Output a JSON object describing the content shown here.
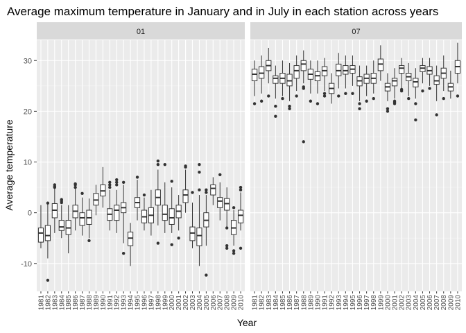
{
  "chart_data": {
    "type": "boxplot",
    "title": "Average maximum temperature in January and in July in each station across years",
    "xlabel": "Year",
    "ylabel": "Average temperature",
    "ylim": [
      -15.5,
      34
    ],
    "y_ticks": [
      -10,
      0,
      10,
      20,
      30
    ],
    "grid": true,
    "legend": "none",
    "colors": {
      "panel_bg": "#ebebeb",
      "strip_bg": "#d9d9d9",
      "grid_major": "#ffffff",
      "box_fill": "#ffffff",
      "box_line": "#333333",
      "outlier": "#333333",
      "axis_text": "#4d4d4d"
    },
    "categories": [
      "1981",
      "1982",
      "1983",
      "1984",
      "1985",
      "1986",
      "1987",
      "1988",
      "1989",
      "1990",
      "1991",
      "1992",
      "1993",
      "1994",
      "1995",
      "1996",
      "1997",
      "1998",
      "1999",
      "2000",
      "2001",
      "2002",
      "2003",
      "2004",
      "2005",
      "2006",
      "2007",
      "2008",
      "2009",
      "2010"
    ],
    "panels": [
      {
        "strip": "01",
        "boxes": [
          {
            "year": "1981",
            "min": -7.0,
            "q1": -5.8,
            "median": -4.0,
            "q3": -3.0,
            "max": 1.5,
            "outliers": []
          },
          {
            "year": "1982",
            "min": -9.0,
            "q1": -5.5,
            "median": -4.5,
            "q3": -2.5,
            "max": 1.8,
            "outliers": [
              -13.3,
              1.9
            ]
          },
          {
            "year": "1983",
            "min": -4.0,
            "q1": -1.0,
            "median": 0.5,
            "q3": 1.8,
            "max": 4.8,
            "outliers": [
              5.0,
              5.2,
              5.5
            ]
          },
          {
            "year": "1984",
            "min": -5.0,
            "q1": -3.5,
            "median": -2.8,
            "q3": -1.5,
            "max": 1.5,
            "outliers": [
              2.0,
              2.3,
              2.6
            ]
          },
          {
            "year": "1985",
            "min": -8.0,
            "q1": -4.3,
            "median": -3.0,
            "q3": -1.5,
            "max": 1.5,
            "outliers": []
          },
          {
            "year": "1986",
            "min": -3.5,
            "q1": -1.0,
            "median": 0.3,
            "q3": 1.5,
            "max": 4.8,
            "outliers": [
              5.0,
              5.5,
              5.7
            ]
          },
          {
            "year": "1987",
            "min": -4.5,
            "q1": -2.5,
            "median": -1.0,
            "q3": 0.0,
            "max": 3.0,
            "outliers": [
              3.8
            ]
          },
          {
            "year": "1988",
            "min": -5.0,
            "q1": -2.3,
            "median": -1.0,
            "q3": 0.5,
            "max": 2.8,
            "outliers": [
              -5.5
            ]
          },
          {
            "year": "1989",
            "min": -0.5,
            "q1": 1.5,
            "median": 2.5,
            "q3": 3.8,
            "max": 5.5,
            "outliers": []
          },
          {
            "year": "1990",
            "min": 1.0,
            "q1": 3.3,
            "median": 4.3,
            "q3": 5.5,
            "max": 9.0,
            "outliers": []
          },
          {
            "year": "1991",
            "min": -3.5,
            "q1": -1.5,
            "median": -0.3,
            "q3": 0.8,
            "max": 4.5,
            "outliers": [
              5.0,
              5.5,
              6.0
            ]
          },
          {
            "year": "1992",
            "min": -4.0,
            "q1": -1.5,
            "median": 0.5,
            "q3": 1.5,
            "max": 4.5,
            "outliers": [
              5.5,
              6.0,
              6.5
            ]
          },
          {
            "year": "1993",
            "min": -6.0,
            "q1": 0.0,
            "median": 1.0,
            "q3": 2.0,
            "max": 5.5,
            "outliers": [
              -8.0,
              6.0
            ]
          },
          {
            "year": "1994",
            "min": -10.5,
            "q1": -6.5,
            "median": -5.0,
            "q3": -3.8,
            "max": -2.0,
            "outliers": []
          },
          {
            "year": "1995",
            "min": -1.5,
            "q1": 1.0,
            "median": 2.0,
            "q3": 3.0,
            "max": 6.5,
            "outliers": [
              7.0
            ]
          },
          {
            "year": "1996",
            "min": -3.5,
            "q1": -2.0,
            "median": -0.8,
            "q3": 0.5,
            "max": 3.0,
            "outliers": [
              3.5
            ]
          },
          {
            "year": "1997",
            "min": -4.5,
            "q1": -2.0,
            "median": -0.5,
            "q3": 1.0,
            "max": 4.5,
            "outliers": []
          },
          {
            "year": "1998",
            "min": -2.5,
            "q1": 1.5,
            "median": 3.0,
            "q3": 4.5,
            "max": 8.5,
            "outliers": [
              -6.0,
              9.5,
              10.2
            ]
          },
          {
            "year": "1999",
            "min": -4.0,
            "q1": -1.5,
            "median": -0.3,
            "q3": 1.5,
            "max": 6.0,
            "outliers": [
              9.5
            ]
          },
          {
            "year": "2000",
            "min": -4.0,
            "q1": -2.3,
            "median": -1.0,
            "q3": 0.8,
            "max": 5.0,
            "outliers": [
              -6.3,
              6.2
            ]
          },
          {
            "year": "2001",
            "min": -3.5,
            "q1": -1.0,
            "median": 0.3,
            "q3": 1.5,
            "max": 3.5,
            "outliers": [
              -5.0
            ]
          },
          {
            "year": "2002",
            "min": 0.0,
            "q1": 2.0,
            "median": 3.5,
            "q3": 4.5,
            "max": 8.5,
            "outliers": [
              9.0,
              9.2
            ]
          },
          {
            "year": "2003",
            "min": -7.0,
            "q1": -5.5,
            "median": -4.0,
            "q3": -2.8,
            "max": 2.0,
            "outliers": [
              4.0
            ]
          },
          {
            "year": "2004",
            "min": -10.5,
            "q1": -6.5,
            "median": -4.5,
            "q3": -3.0,
            "max": 3.5,
            "outliers": [
              4.5,
              8.0,
              9.5
            ]
          },
          {
            "year": "2005",
            "min": -6.5,
            "q1": -2.8,
            "median": -1.5,
            "q3": 0.0,
            "max": 3.5,
            "outliers": [
              -12.3,
              4.0,
              4.5
            ]
          },
          {
            "year": "2006",
            "min": 1.5,
            "q1": 3.5,
            "median": 4.8,
            "q3": 5.5,
            "max": 7.0,
            "outliers": []
          },
          {
            "year": "2007",
            "min": -1.5,
            "q1": 1.0,
            "median": 2.3,
            "q3": 3.0,
            "max": 6.0,
            "outliers": [
              7.5
            ]
          },
          {
            "year": "2008",
            "min": -3.0,
            "q1": 0.5,
            "median": 1.8,
            "q3": 2.8,
            "max": 5.0,
            "outliers": [
              -6.5,
              -7.0,
              -3.0
            ]
          },
          {
            "year": "2009",
            "min": -6.5,
            "q1": -4.3,
            "median": -3.0,
            "q3": -1.5,
            "max": 0.5,
            "outliers": [
              -7.5,
              -8.0,
              1.0
            ]
          },
          {
            "year": "2010",
            "min": -3.5,
            "q1": -2.0,
            "median": -0.5,
            "q3": 0.5,
            "max": 4.0,
            "outliers": [
              -7.0,
              4.5,
              5.0
            ]
          }
        ]
      },
      {
        "strip": "07",
        "boxes": [
          {
            "year": "1981",
            "min": 23.0,
            "q1": 26.0,
            "median": 27.3,
            "q3": 28.3,
            "max": 30.0,
            "outliers": [
              21.5
            ]
          },
          {
            "year": "1982",
            "min": 23.5,
            "q1": 26.5,
            "median": 27.5,
            "q3": 28.8,
            "max": 31.0,
            "outliers": [
              22.0
            ]
          },
          {
            "year": "1983",
            "min": 25.5,
            "q1": 28.0,
            "median": 29.0,
            "q3": 30.0,
            "max": 32.5,
            "outliers": [
              23.0
            ]
          },
          {
            "year": "1984",
            "min": 22.5,
            "q1": 25.5,
            "median": 26.5,
            "q3": 27.0,
            "max": 29.0,
            "outliers": [
              19.0,
              21.0
            ]
          },
          {
            "year": "1985",
            "min": 23.0,
            "q1": 25.5,
            "median": 26.5,
            "q3": 27.5,
            "max": 30.0,
            "outliers": [
              22.5
            ]
          },
          {
            "year": "1986",
            "min": 22.0,
            "q1": 25.0,
            "median": 26.0,
            "q3": 27.3,
            "max": 29.5,
            "outliers": [
              21.0,
              20.5
            ]
          },
          {
            "year": "1987",
            "min": 24.0,
            "q1": 26.5,
            "median": 28.0,
            "q3": 29.0,
            "max": 31.0,
            "outliers": [
              23.0
            ]
          },
          {
            "year": "1988",
            "min": 25.5,
            "q1": 28.0,
            "median": 29.3,
            "q3": 30.0,
            "max": 32.0,
            "outliers": [
              14.0,
              24.5,
              24.8
            ]
          },
          {
            "year": "1989",
            "min": 23.5,
            "q1": 26.3,
            "median": 27.3,
            "q3": 28.3,
            "max": 30.0,
            "outliers": [
              22.0
            ]
          },
          {
            "year": "1990",
            "min": 23.5,
            "q1": 26.0,
            "median": 27.0,
            "q3": 27.8,
            "max": 30.0,
            "outliers": [
              21.5
            ]
          },
          {
            "year": "1991",
            "min": 24.0,
            "q1": 27.0,
            "median": 28.0,
            "q3": 28.8,
            "max": 30.5,
            "outliers": [
              23.0,
              23.5
            ]
          },
          {
            "year": "1992",
            "min": 21.5,
            "q1": 23.5,
            "median": 24.5,
            "q3": 25.5,
            "max": 27.5,
            "outliers": []
          },
          {
            "year": "1993",
            "min": 24.5,
            "q1": 27.0,
            "median": 28.0,
            "q3": 29.3,
            "max": 31.5,
            "outliers": [
              23.0
            ]
          },
          {
            "year": "1994",
            "min": 24.5,
            "q1": 27.3,
            "median": 28.0,
            "q3": 29.0,
            "max": 31.0,
            "outliers": [
              23.5
            ]
          },
          {
            "year": "1995",
            "min": 25.0,
            "q1": 27.5,
            "median": 28.3,
            "q3": 29.0,
            "max": 31.0,
            "outliers": [
              23.5
            ]
          },
          {
            "year": "1996",
            "min": 22.0,
            "q1": 25.0,
            "median": 26.0,
            "q3": 26.8,
            "max": 29.0,
            "outliers": [
              21.5,
              20.5
            ]
          },
          {
            "year": "1997",
            "min": 23.0,
            "q1": 25.5,
            "median": 26.5,
            "q3": 27.3,
            "max": 29.0,
            "outliers": [
              22.0
            ]
          },
          {
            "year": "1998",
            "min": 23.5,
            "q1": 25.5,
            "median": 26.5,
            "q3": 27.5,
            "max": 30.0,
            "outliers": [
              22.5
            ]
          },
          {
            "year": "1999",
            "min": 26.0,
            "q1": 28.0,
            "median": 29.3,
            "q3": 30.3,
            "max": 33.0,
            "outliers": []
          },
          {
            "year": "2000",
            "min": 22.0,
            "q1": 24.0,
            "median": 24.8,
            "q3": 25.5,
            "max": 27.5,
            "outliers": [
              20.0,
              20.5
            ]
          },
          {
            "year": "2001",
            "min": 22.5,
            "q1": 25.0,
            "median": 26.0,
            "q3": 26.5,
            "max": 28.5,
            "outliers": [
              21.5,
              21.8,
              22.0
            ]
          },
          {
            "year": "2002",
            "min": 24.5,
            "q1": 27.5,
            "median": 28.5,
            "q3": 29.0,
            "max": 30.5,
            "outliers": [
              24.0,
              24.3
            ]
          },
          {
            "year": "2003",
            "min": 23.0,
            "q1": 26.0,
            "median": 26.8,
            "q3": 27.5,
            "max": 29.5,
            "outliers": [
              22.5
            ]
          },
          {
            "year": "2004",
            "min": 22.5,
            "q1": 24.8,
            "median": 25.8,
            "q3": 26.5,
            "max": 28.5,
            "outliers": [
              18.3,
              21.5
            ]
          },
          {
            "year": "2005",
            "min": 25.5,
            "q1": 27.8,
            "median": 28.5,
            "q3": 29.0,
            "max": 30.5,
            "outliers": [
              24.0
            ]
          },
          {
            "year": "2006",
            "min": 25.0,
            "q1": 27.3,
            "median": 28.0,
            "q3": 28.8,
            "max": 30.5,
            "outliers": [
              24.5
            ]
          },
          {
            "year": "2007",
            "min": 22.0,
            "q1": 25.3,
            "median": 26.0,
            "q3": 27.0,
            "max": 29.0,
            "outliers": [
              19.3
            ]
          },
          {
            "year": "2008",
            "min": 24.0,
            "q1": 26.5,
            "median": 27.5,
            "q3": 28.5,
            "max": 31.0,
            "outliers": [
              22.5
            ]
          },
          {
            "year": "2009",
            "min": 22.5,
            "q1": 24.0,
            "median": 24.8,
            "q3": 25.5,
            "max": 28.0,
            "outliers": []
          },
          {
            "year": "2010",
            "min": 25.5,
            "q1": 27.5,
            "median": 28.8,
            "q3": 30.0,
            "max": 33.5,
            "outliers": [
              23.0
            ]
          }
        ]
      }
    ]
  }
}
